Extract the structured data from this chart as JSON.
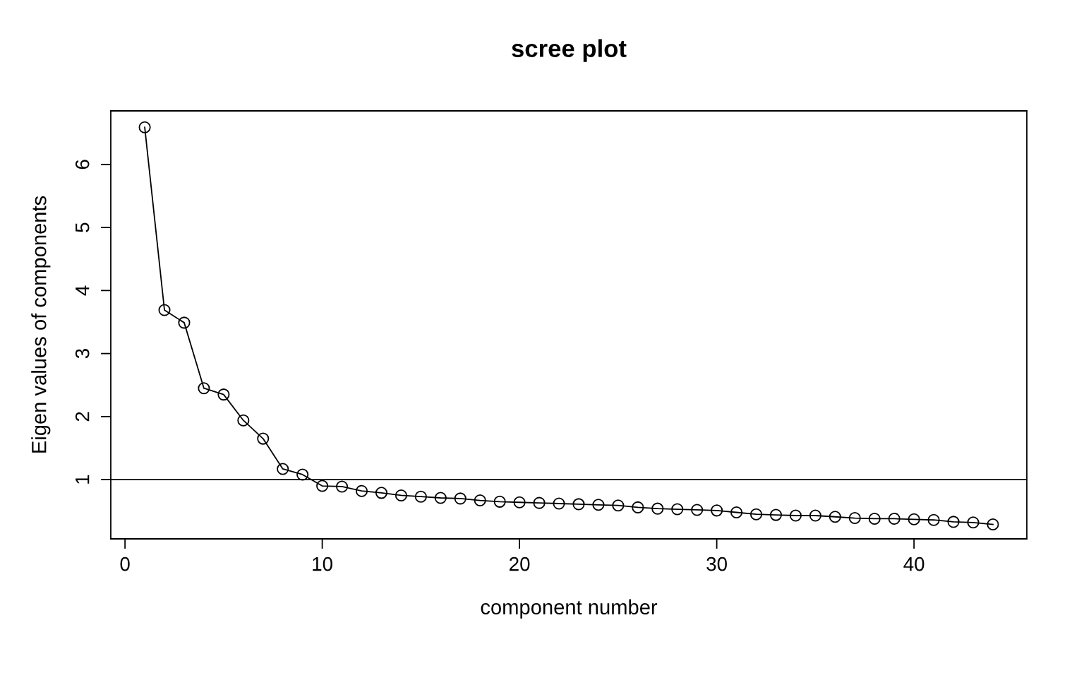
{
  "chart_data": {
    "type": "line",
    "title": "scree plot",
    "xlabel": "component number",
    "ylabel": "Eigen values of components",
    "x": [
      1,
      2,
      3,
      4,
      5,
      6,
      7,
      8,
      9,
      10,
      11,
      12,
      13,
      14,
      15,
      16,
      17,
      18,
      19,
      20,
      21,
      22,
      23,
      24,
      25,
      26,
      27,
      28,
      29,
      30,
      31,
      32,
      33,
      34,
      35,
      36,
      37,
      38,
      39,
      40,
      41,
      42,
      43,
      44
    ],
    "series": [
      {
        "color": "#000000",
        "values": [
          6.59,
          3.69,
          3.49,
          2.45,
          2.35,
          1.94,
          1.65,
          1.17,
          1.08,
          0.9,
          0.89,
          0.82,
          0.79,
          0.75,
          0.73,
          0.71,
          0.7,
          0.67,
          0.65,
          0.64,
          0.63,
          0.62,
          0.61,
          0.6,
          0.59,
          0.56,
          0.54,
          0.53,
          0.52,
          0.51,
          0.48,
          0.45,
          0.44,
          0.43,
          0.43,
          0.41,
          0.39,
          0.38,
          0.38,
          0.37,
          0.36,
          0.33,
          0.32,
          0.29
        ]
      }
    ],
    "xlim": [
      -0.72,
      45.72
    ],
    "ylim": [
      0.06,
      6.85
    ],
    "xticks": [
      0,
      10,
      20,
      30,
      40
    ],
    "yticks": [
      1,
      2,
      3,
      4,
      5,
      6
    ],
    "ref_lines": [
      {
        "axis": "y",
        "value": 1,
        "color": "#000000"
      }
    ],
    "marker": "circle",
    "grid": false,
    "legend": false
  }
}
